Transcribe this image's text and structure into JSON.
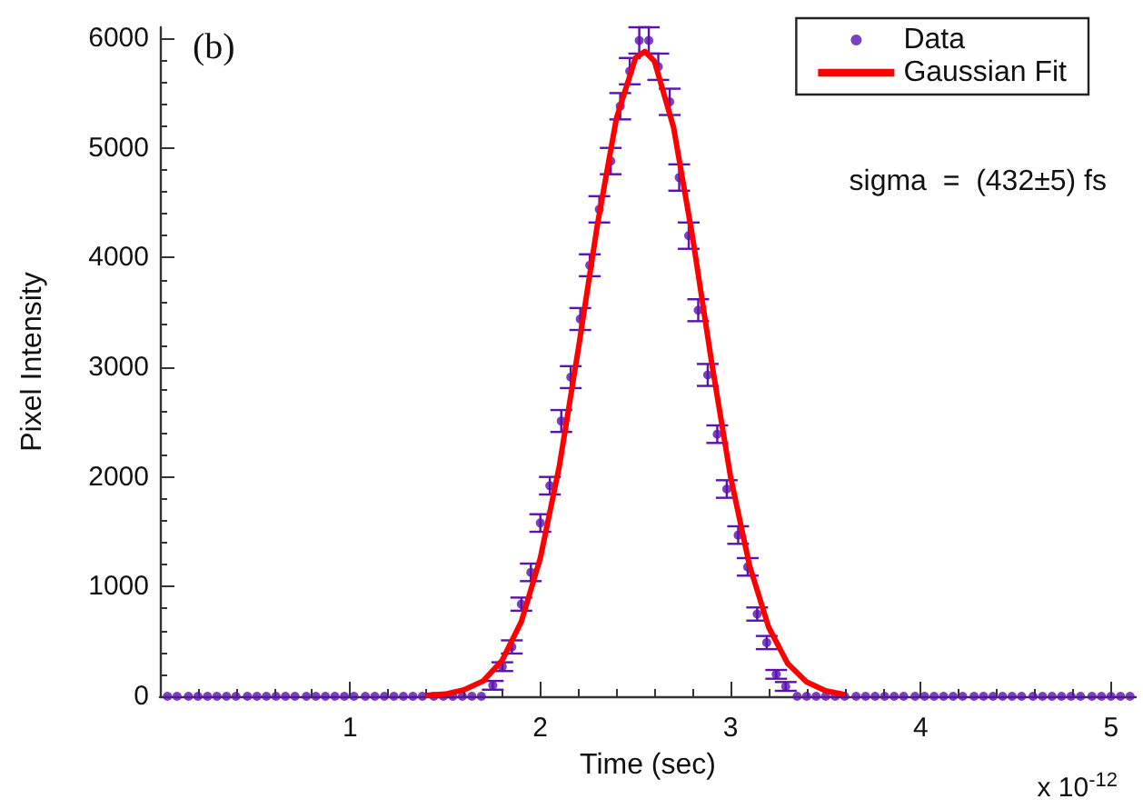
{
  "chart_data": {
    "type": "scatter",
    "xlabel": "Time (sec)",
    "ylabel": "Pixel Intensity",
    "annotations": [
      "(b)",
      "sigma  =  (432±5) fs",
      "x 10$^{-12}$"
    ],
    "xlim": [
      0,
      5.13
    ],
    "xticks": [
      1,
      2,
      3,
      4,
      5
    ],
    "ylim": [
      0,
      6100
    ],
    "yticks": [
      0,
      1000,
      2000,
      3000,
      4000,
      5000,
      6000
    ],
    "grid": false,
    "legend": "top right",
    "series": [
      {
        "name": "Data",
        "marker": "circle",
        "color": "#5a12b0",
        "x": [
          0.04,
          0.09,
          0.15,
          0.2,
          0.25,
          0.3,
          0.35,
          0.4,
          0.46,
          0.51,
          0.56,
          0.61,
          0.66,
          0.71,
          0.77,
          0.82,
          0.87,
          0.92,
          0.97,
          1.02,
          1.08,
          1.13,
          1.18,
          1.23,
          1.28,
          1.33,
          1.38,
          1.44,
          1.49,
          1.54,
          1.59,
          1.64,
          1.69,
          1.75,
          1.8,
          1.85,
          1.9,
          1.95,
          2.0,
          2.05,
          2.11,
          2.16,
          2.21,
          2.26,
          2.31,
          2.37,
          2.42,
          2.47,
          2.52,
          2.57,
          2.62,
          2.68,
          2.73,
          2.78,
          2.83,
          2.88,
          2.93,
          2.98,
          3.04,
          3.09,
          3.14,
          3.19,
          3.24,
          3.29,
          3.35,
          3.4,
          3.45,
          3.5,
          3.55,
          3.6,
          3.66,
          3.71,
          3.76,
          3.81,
          3.86,
          3.91,
          3.97,
          4.02,
          4.07,
          4.12,
          4.17,
          4.22,
          4.28,
          4.33,
          4.38,
          4.43,
          4.48,
          4.53,
          4.59,
          4.64,
          4.69,
          4.74,
          4.79,
          4.84,
          4.9,
          4.95,
          5.0,
          5.05,
          5.1
        ],
        "values": [
          0,
          0,
          0,
          0,
          0,
          0,
          0,
          0,
          0,
          0,
          0,
          0,
          0,
          0,
          0,
          0,
          0,
          0,
          0,
          0,
          0,
          0,
          0,
          0,
          0,
          0,
          0,
          0,
          0,
          0,
          0,
          0,
          0,
          100,
          270,
          450,
          840,
          1130,
          1580,
          1920,
          2510,
          2910,
          3440,
          3930,
          4440,
          4880,
          5380,
          5700,
          5980,
          5980,
          5740,
          5420,
          4730,
          4200,
          3520,
          2930,
          2390,
          1890,
          1470,
          1180,
          750,
          490,
          200,
          90,
          0,
          0,
          0,
          0,
          0,
          0,
          0,
          0,
          0,
          0,
          0,
          0,
          0,
          0,
          0,
          0,
          0,
          0,
          0,
          0,
          0,
          0,
          0,
          0,
          0,
          0,
          0,
          0,
          0,
          0,
          0,
          0,
          0,
          0,
          0
        ],
        "errors": [
          null,
          null,
          null,
          null,
          null,
          null,
          null,
          null,
          null,
          null,
          null,
          null,
          null,
          null,
          null,
          null,
          null,
          null,
          null,
          null,
          null,
          null,
          null,
          null,
          null,
          null,
          null,
          null,
          null,
          null,
          null,
          null,
          null,
          40,
          40,
          60,
          60,
          80,
          80,
          80,
          100,
          100,
          100,
          100,
          120,
          120,
          120,
          120,
          120,
          120,
          120,
          120,
          120,
          120,
          100,
          100,
          80,
          80,
          80,
          80,
          60,
          60,
          40,
          40,
          null,
          null,
          null,
          null,
          null,
          null,
          null,
          null,
          null,
          null,
          null,
          null,
          null,
          null,
          null,
          null,
          null,
          null,
          null,
          null,
          null,
          null,
          null,
          null,
          null,
          null,
          null,
          null,
          null,
          null,
          null,
          null,
          null,
          null,
          null
        ]
      },
      {
        "name": "Gaussian Fit",
        "type": "line",
        "marker": "none",
        "line_style": "solid",
        "color": "#ff0000",
        "x": [
          1.41,
          1.5,
          1.6,
          1.7,
          1.8,
          1.9,
          2.0,
          2.1,
          2.2,
          2.3,
          2.4,
          2.5,
          2.55,
          2.6,
          2.7,
          2.8,
          2.9,
          3.0,
          3.1,
          3.2,
          3.3,
          3.4,
          3.5,
          3.59
        ],
        "values": [
          10,
          20,
          60,
          140,
          330,
          680,
          1260,
          2100,
          3170,
          4300,
          5270,
          5820,
          5880,
          5790,
          5190,
          4190,
          3050,
          2000,
          1190,
          630,
          300,
          130,
          50,
          20
        ]
      }
    ]
  }
}
